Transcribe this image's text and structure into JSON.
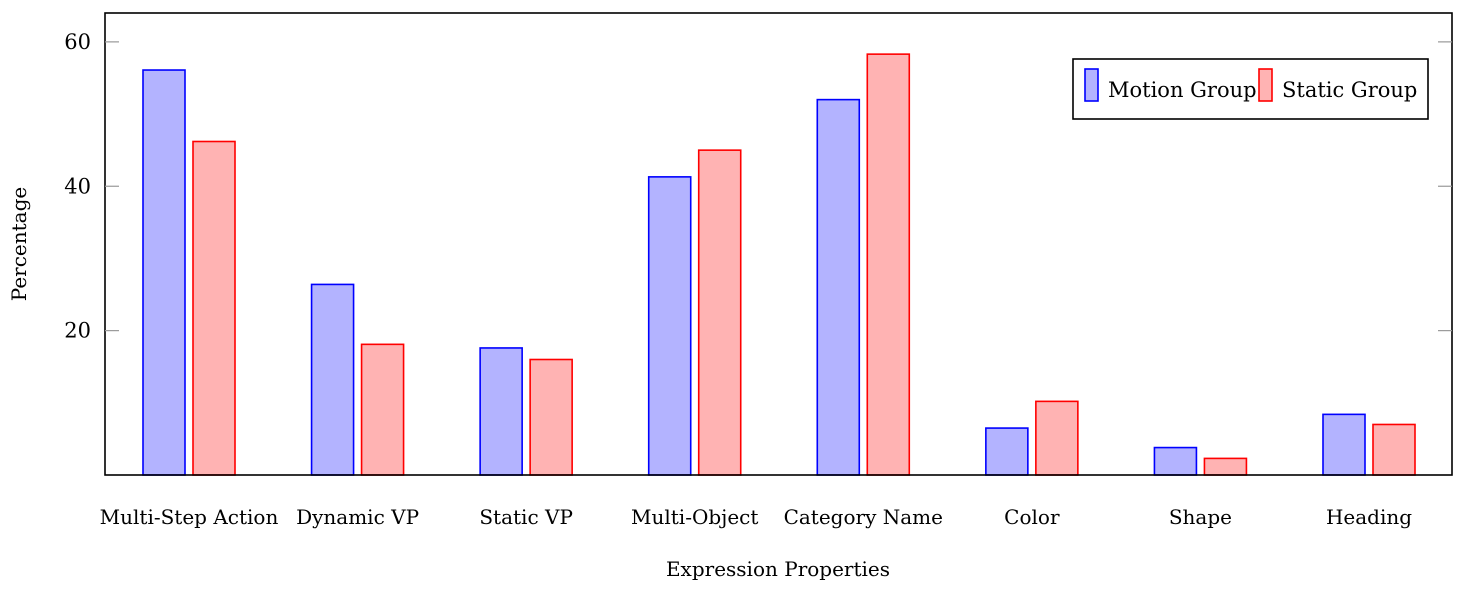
{
  "chart_data": {
    "type": "bar",
    "title": "",
    "xlabel": "Expression Properties",
    "ylabel": "Percentage",
    "ylim": [
      0,
      64
    ],
    "y_ticks": [
      20,
      40,
      60
    ],
    "grid": false,
    "legend_position": "top-right",
    "categories": [
      "Multi-Step Action",
      "Dynamic VP",
      "Static VP",
      "Multi-Object",
      "Category Name",
      "Color",
      "Shape",
      "Heading"
    ],
    "series": [
      {
        "name": "Motion Group",
        "fill": "#b3b3ff",
        "stroke": "#0000ff",
        "values": [
          56.1,
          26.4,
          17.6,
          41.3,
          52.0,
          6.5,
          3.8,
          8.4
        ]
      },
      {
        "name": "Static Group",
        "fill": "#ffb3b3",
        "stroke": "#ff0000",
        "values": [
          46.2,
          18.1,
          16.0,
          45.0,
          58.3,
          10.2,
          2.3,
          7.0
        ]
      }
    ]
  }
}
